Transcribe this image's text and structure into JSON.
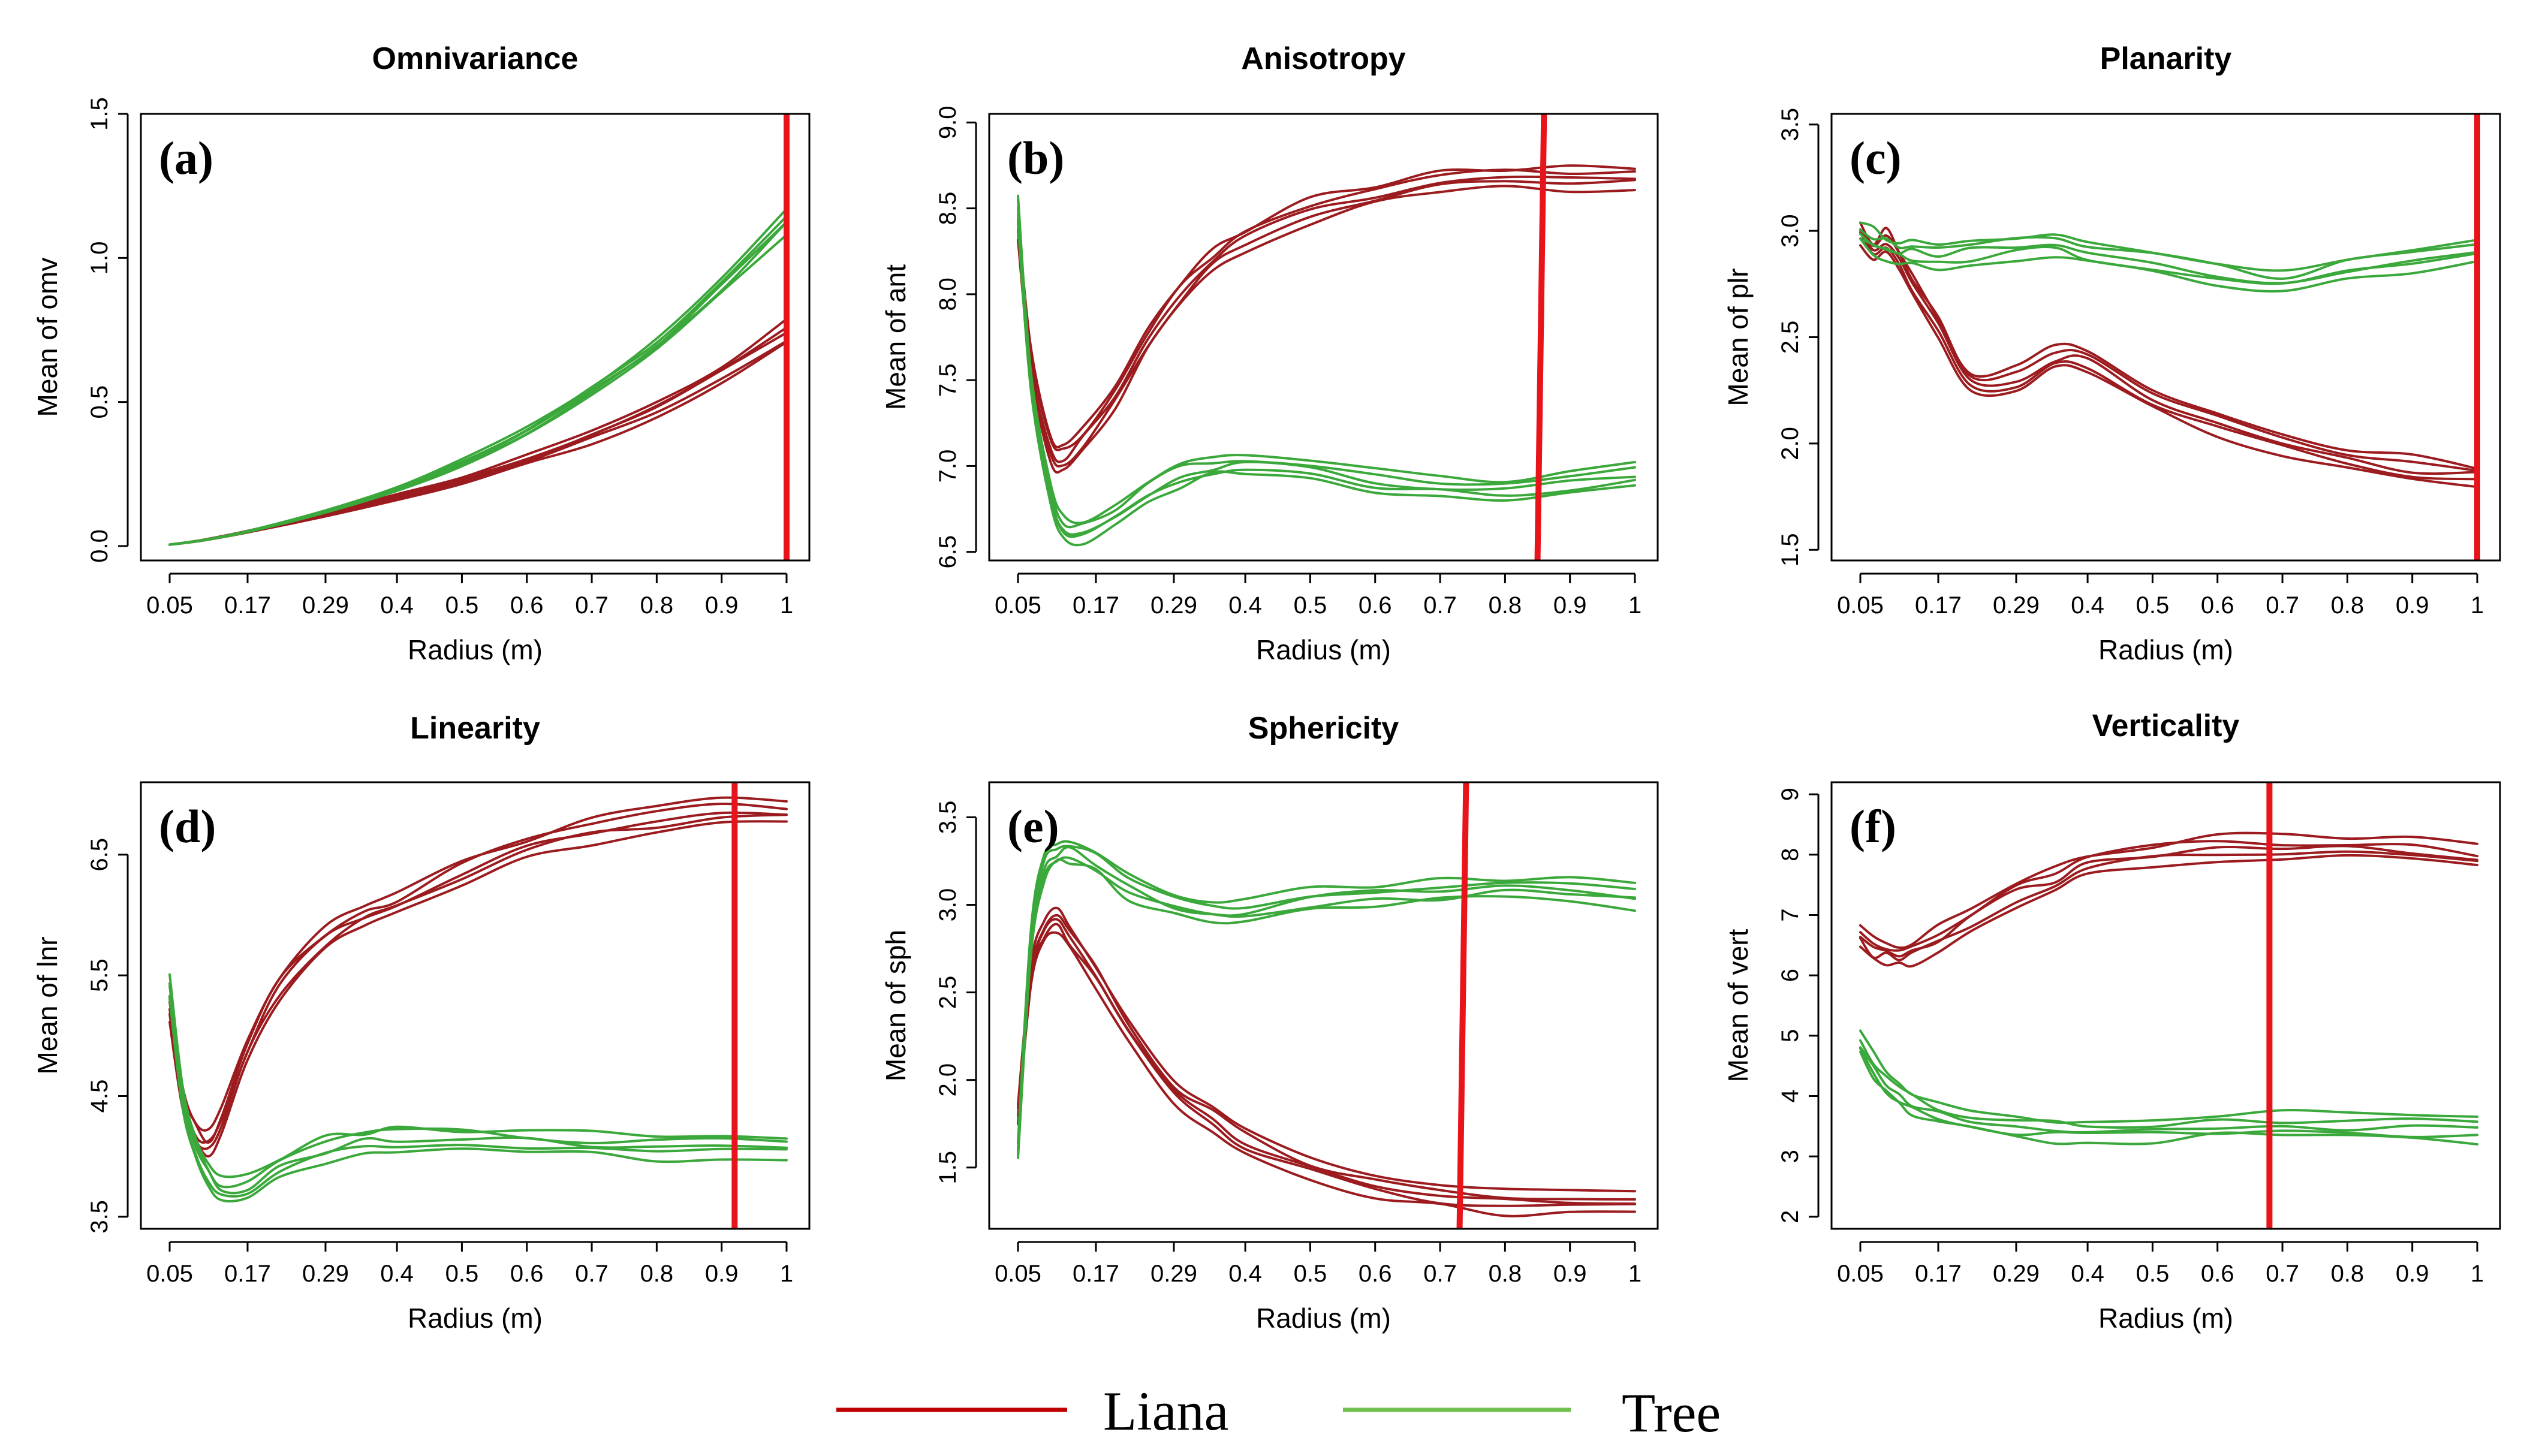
{
  "colors": {
    "liana": "#9B1B1F",
    "tree": "#3AA83A",
    "legend_liana": "#C00000",
    "legend_tree": "#70C050",
    "cutoff": "#E8141B"
  },
  "legend": {
    "liana_label": "Liana",
    "tree_label": "Tree"
  },
  "chart_data": [
    {
      "type": "line",
      "panel": "(a)",
      "title": "Omnivariance",
      "xlabel": "Radius (m)",
      "ylabel": "Mean of omv",
      "x_ticks": [
        "0.05",
        "0.17",
        "0.29",
        "0.4",
        "0.5",
        "0.6",
        "0.7",
        "0.8",
        "0.9",
        "1"
      ],
      "xlim": [
        0.05,
        1
      ],
      "ylim": [
        -0.05,
        1.5
      ],
      "y_ticks": [
        0.0,
        0.5,
        1.0,
        1.5
      ],
      "y_tick_labels": [
        "0.0",
        "0.5",
        "1.0",
        "1.5"
      ],
      "cutoff_x": [
        1.0,
        1.0
      ],
      "series": [
        {
          "name": "Liana",
          "replicates": 5,
          "x": [
            0.05,
            0.1,
            0.17,
            0.29,
            0.4,
            0.5,
            0.6,
            0.7,
            0.8,
            0.9,
            1.0
          ],
          "values": [
            0.005,
            0.02,
            0.05,
            0.11,
            0.17,
            0.23,
            0.3,
            0.38,
            0.48,
            0.6,
            0.74
          ]
        },
        {
          "name": "Tree",
          "replicates": 5,
          "x": [
            0.05,
            0.1,
            0.17,
            0.29,
            0.4,
            0.5,
            0.6,
            0.7,
            0.8,
            0.9,
            1.0
          ],
          "values": [
            0.005,
            0.02,
            0.05,
            0.12,
            0.2,
            0.29,
            0.4,
            0.54,
            0.7,
            0.9,
            1.13
          ]
        }
      ]
    },
    {
      "type": "line",
      "panel": "(b)",
      "title": "Anisotropy",
      "xlabel": "Radius (m)",
      "ylabel": "Mean of ant",
      "x_ticks": [
        "0.05",
        "0.17",
        "0.29",
        "0.4",
        "0.5",
        "0.6",
        "0.7",
        "0.8",
        "0.9",
        "1"
      ],
      "xlim": [
        0.05,
        1
      ],
      "ylim": [
        6.45,
        9.05
      ],
      "y_ticks": [
        6.5,
        7.0,
        7.5,
        8.0,
        8.5,
        9.0
      ],
      "y_tick_labels": [
        "6.5",
        "7.0",
        "7.5",
        "8.0",
        "8.5",
        "9.0"
      ],
      "cutoff_x": [
        0.86,
        0.85
      ],
      "series": [
        {
          "name": "Liana",
          "replicates": 5,
          "x": [
            0.05,
            0.07,
            0.1,
            0.12,
            0.15,
            0.2,
            0.25,
            0.3,
            0.35,
            0.4,
            0.5,
            0.6,
            0.7,
            0.8,
            0.9,
            1.0
          ],
          "values": [
            8.4,
            7.6,
            7.1,
            7.05,
            7.15,
            7.4,
            7.75,
            8.0,
            8.2,
            8.32,
            8.48,
            8.58,
            8.65,
            8.68,
            8.68,
            8.68
          ]
        },
        {
          "name": "Tree",
          "replicates": 5,
          "x": [
            0.05,
            0.07,
            0.1,
            0.12,
            0.15,
            0.2,
            0.25,
            0.3,
            0.35,
            0.4,
            0.5,
            0.6,
            0.7,
            0.8,
            0.9,
            1.0
          ],
          "values": [
            8.5,
            7.5,
            6.85,
            6.65,
            6.62,
            6.72,
            6.85,
            6.95,
            7.0,
            7.0,
            6.98,
            6.92,
            6.88,
            6.87,
            6.9,
            6.95
          ]
        }
      ]
    },
    {
      "type": "line",
      "panel": "(c)",
      "title": "Planarity",
      "xlabel": "Radius (m)",
      "ylabel": "Mean of plr",
      "x_ticks": [
        "0.05",
        "0.17",
        "0.29",
        "0.4",
        "0.5",
        "0.6",
        "0.7",
        "0.8",
        "0.9",
        "1"
      ],
      "xlim": [
        0.05,
        1
      ],
      "ylim": [
        1.45,
        3.55
      ],
      "y_ticks": [
        1.5,
        2.0,
        2.5,
        3.0,
        3.5
      ],
      "y_tick_labels": [
        "1.5",
        "2.0",
        "2.5",
        "3.0",
        "3.5"
      ],
      "cutoff_x": [
        1.0,
        1.0
      ],
      "series": [
        {
          "name": "Liana",
          "replicates": 5,
          "x": [
            0.05,
            0.07,
            0.09,
            0.11,
            0.13,
            0.17,
            0.22,
            0.29,
            0.35,
            0.4,
            0.5,
            0.6,
            0.7,
            0.8,
            0.9,
            1.0
          ],
          "values": [
            3.0,
            2.9,
            2.95,
            2.85,
            2.75,
            2.55,
            2.28,
            2.3,
            2.4,
            2.38,
            2.22,
            2.1,
            2.0,
            1.93,
            1.88,
            1.85
          ]
        },
        {
          "name": "Tree",
          "replicates": 5,
          "x": [
            0.05,
            0.07,
            0.09,
            0.11,
            0.13,
            0.17,
            0.22,
            0.29,
            0.35,
            0.4,
            0.5,
            0.6,
            0.7,
            0.8,
            0.9,
            1.0
          ],
          "values": [
            3.0,
            2.95,
            2.92,
            2.9,
            2.9,
            2.88,
            2.9,
            2.92,
            2.93,
            2.9,
            2.85,
            2.8,
            2.77,
            2.82,
            2.86,
            2.9
          ]
        }
      ]
    },
    {
      "type": "line",
      "panel": "(d)",
      "title": "Linearity",
      "xlabel": "Radius (m)",
      "ylabel": "Mean of lnr",
      "x_ticks": [
        "0.05",
        "0.17",
        "0.29",
        "0.4",
        "0.5",
        "0.6",
        "0.7",
        "0.8",
        "0.9",
        "1"
      ],
      "xlim": [
        0.05,
        1
      ],
      "ylim": [
        3.4,
        7.1
      ],
      "y_ticks": [
        3.5,
        4.5,
        5.5,
        6.5
      ],
      "y_tick_labels": [
        "3.5",
        "4.5",
        "5.5",
        "6.5"
      ],
      "cutoff_x": [
        0.92,
        0.92
      ],
      "series": [
        {
          "name": "Liana",
          "replicates": 5,
          "x": [
            0.05,
            0.07,
            0.09,
            0.11,
            0.13,
            0.17,
            0.22,
            0.29,
            0.35,
            0.4,
            0.5,
            0.6,
            0.7,
            0.8,
            0.9,
            1.0
          ],
          "values": [
            5.2,
            4.5,
            4.2,
            4.1,
            4.3,
            4.9,
            5.4,
            5.8,
            6.0,
            6.1,
            6.35,
            6.55,
            6.7,
            6.8,
            6.85,
            6.85
          ]
        },
        {
          "name": "Tree",
          "replicates": 5,
          "x": [
            0.05,
            0.07,
            0.09,
            0.11,
            0.13,
            0.17,
            0.22,
            0.29,
            0.35,
            0.4,
            0.5,
            0.6,
            0.7,
            0.8,
            0.9,
            1.0
          ],
          "values": [
            5.4,
            4.5,
            4.1,
            3.85,
            3.72,
            3.75,
            3.9,
            4.05,
            4.12,
            4.15,
            4.15,
            4.12,
            4.1,
            4.08,
            4.07,
            4.07
          ]
        }
      ]
    },
    {
      "type": "line",
      "panel": "(e)",
      "title": "Sphericity",
      "xlabel": "Radius (m)",
      "ylabel": "Mean of sph",
      "x_ticks": [
        "0.05",
        "0.17",
        "0.29",
        "0.4",
        "0.5",
        "0.6",
        "0.7",
        "0.8",
        "0.9",
        "1"
      ],
      "xlim": [
        0.05,
        1
      ],
      "ylim": [
        1.15,
        3.7
      ],
      "y_ticks": [
        1.5,
        2.0,
        2.5,
        3.0,
        3.5
      ],
      "y_tick_labels": [
        "1.5",
        "2.0",
        "2.5",
        "3.0",
        "3.5"
      ],
      "cutoff_x": [
        0.74,
        0.73
      ],
      "series": [
        {
          "name": "Liana",
          "replicates": 5,
          "x": [
            0.05,
            0.07,
            0.09,
            0.11,
            0.13,
            0.17,
            0.22,
            0.29,
            0.35,
            0.4,
            0.5,
            0.6,
            0.7,
            0.8,
            0.9,
            1.0
          ],
          "values": [
            1.8,
            2.6,
            2.85,
            2.92,
            2.8,
            2.6,
            2.3,
            1.95,
            1.78,
            1.65,
            1.5,
            1.4,
            1.33,
            1.3,
            1.3,
            1.31
          ]
        },
        {
          "name": "Tree",
          "replicates": 5,
          "x": [
            0.05,
            0.07,
            0.09,
            0.11,
            0.13,
            0.17,
            0.22,
            0.29,
            0.35,
            0.4,
            0.5,
            0.6,
            0.7,
            0.8,
            0.9,
            1.0
          ],
          "values": [
            1.6,
            2.8,
            3.2,
            3.3,
            3.32,
            3.25,
            3.1,
            3.0,
            2.97,
            2.97,
            3.02,
            3.06,
            3.08,
            3.1,
            3.1,
            3.05
          ]
        }
      ]
    },
    {
      "type": "line",
      "panel": "(f)",
      "title": "Verticality",
      "xlabel": "Radius (m)",
      "ylabel": "Mean of vert",
      "x_ticks": [
        "0.05",
        "0.17",
        "0.29",
        "0.4",
        "0.5",
        "0.6",
        "0.7",
        "0.8",
        "0.9",
        "1"
      ],
      "xlim": [
        0.05,
        1
      ],
      "ylim": [
        1.8,
        9.2
      ],
      "y_ticks": [
        2,
        3,
        4,
        5,
        6,
        7,
        8,
        9
      ],
      "y_tick_labels": [
        "2",
        "3",
        "4",
        "5",
        "6",
        "7",
        "8",
        "9"
      ],
      "cutoff_x": [
        0.68,
        0.68
      ],
      "series": [
        {
          "name": "Liana",
          "replicates": 5,
          "x": [
            0.05,
            0.07,
            0.09,
            0.11,
            0.13,
            0.17,
            0.22,
            0.29,
            0.35,
            0.4,
            0.5,
            0.6,
            0.7,
            0.8,
            0.9,
            1.0
          ],
          "values": [
            6.7,
            6.45,
            6.4,
            6.35,
            6.4,
            6.6,
            6.95,
            7.35,
            7.6,
            7.8,
            8.0,
            8.1,
            8.12,
            8.1,
            8.05,
            7.95
          ]
        },
        {
          "name": "Tree",
          "replicates": 5,
          "x": [
            0.05,
            0.07,
            0.09,
            0.11,
            0.13,
            0.17,
            0.22,
            0.29,
            0.35,
            0.4,
            0.5,
            0.6,
            0.7,
            0.8,
            0.9,
            1.0
          ],
          "values": [
            4.85,
            4.5,
            4.2,
            4.0,
            3.88,
            3.75,
            3.6,
            3.52,
            3.45,
            3.42,
            3.45,
            3.5,
            3.52,
            3.5,
            3.48,
            3.45
          ]
        }
      ]
    }
  ]
}
